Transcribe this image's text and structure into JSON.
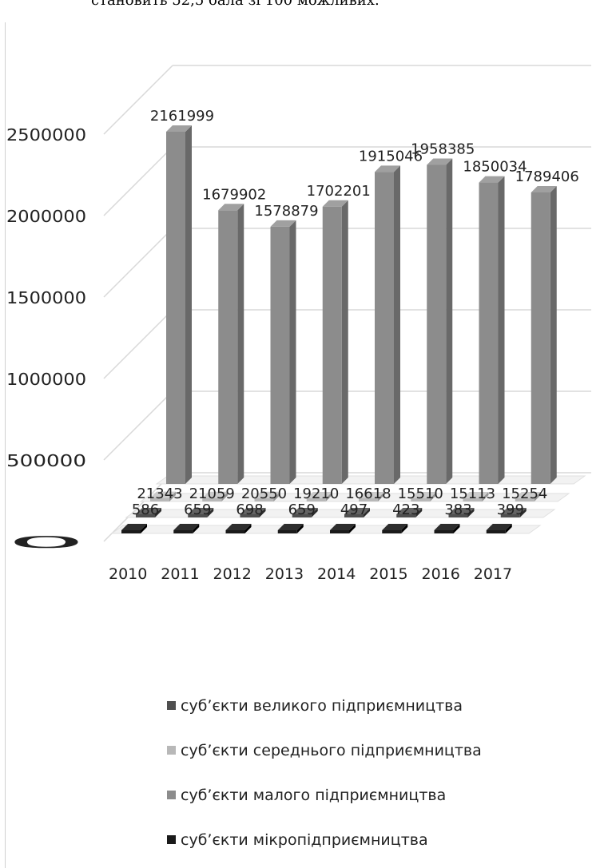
{
  "header_text": "становить 52,5 бала зі 100 можливих.",
  "chart_data": {
    "type": "bar",
    "subtype": "3d-clustered-column",
    "categories": [
      "2010",
      "2011",
      "2012",
      "2013",
      "2014",
      "2015",
      "2016",
      "2017"
    ],
    "ylim": [
      0,
      2500000
    ],
    "y_ticks": [
      "0",
      "500000",
      "1000000",
      "1500000",
      "2000000",
      "2500000"
    ],
    "grid": true,
    "legend_position": "bottom",
    "series": [
      {
        "name": "суб’єкти великого підприємництва",
        "color": "#4f4f4f",
        "values": [
          586,
          659,
          698,
          659,
          497,
          423,
          383,
          399
        ]
      },
      {
        "name": "суб’єкти середнього підприємництва",
        "color": "#b8b8b8",
        "values": [
          21343,
          21059,
          20550,
          19210,
          16618,
          15510,
          15113,
          15254
        ]
      },
      {
        "name": "суб’єкти малого підприємництва",
        "color": "#8c8c8c",
        "values": [
          2161999,
          1679902,
          1578879,
          1702201,
          1915046,
          1958385,
          1850034,
          1789406
        ]
      },
      {
        "name": "суб’єкти мікропідприємництва",
        "color": "#1a1a1a",
        "values": [
          0,
          0,
          0,
          0,
          0,
          0,
          0,
          0
        ]
      }
    ],
    "data_labels": {
      "large": [
        "586",
        "659",
        "698",
        "659",
        "497",
        "423",
        "383",
        "399"
      ],
      "medium": [
        "21343",
        "21059",
        "20550",
        "19210",
        "16618",
        "15510",
        "15113",
        "15254"
      ],
      "small": [
        "2161999",
        "1679902",
        "1578879",
        "1702201",
        "1915046",
        "1958385",
        "1850034",
        "1789406"
      ]
    }
  }
}
